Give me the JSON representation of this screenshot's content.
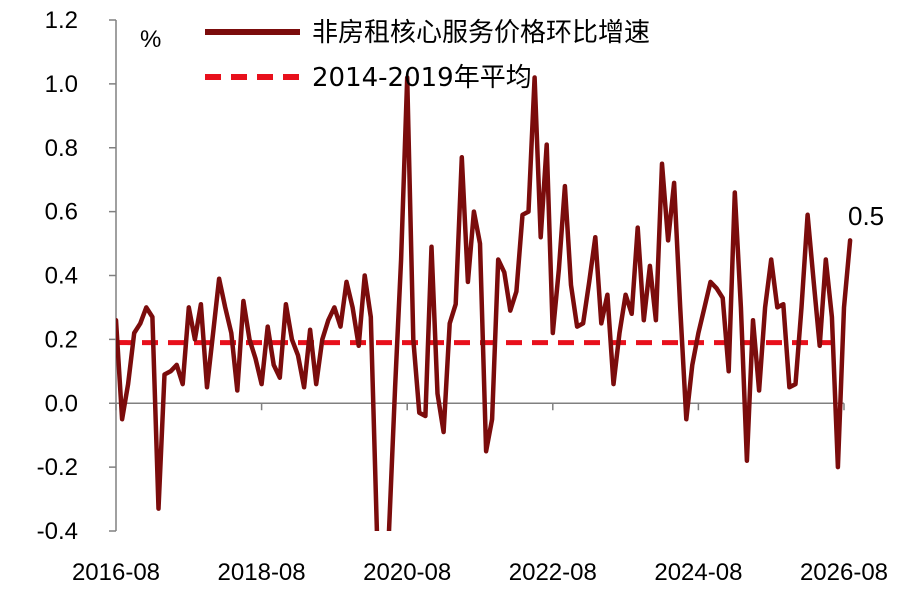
{
  "chart_data": {
    "type": "line",
    "title": "",
    "xlabel": "",
    "ylabel": "%",
    "ylim": [
      -0.4,
      1.2
    ],
    "y_ticks": [
      "1.2",
      "1.0",
      "0.8",
      "0.6",
      "0.4",
      "0.2",
      "0.0",
      "-0.2",
      "-0.4"
    ],
    "x_ticks": [
      "2016-08",
      "2018-08",
      "2020-08",
      "2022-08",
      "2024-08",
      "2026-08"
    ],
    "grid": false,
    "legend": "top-left",
    "end_label": "0.5",
    "series": [
      {
        "name": "非房租核心服务价格环比增速",
        "color": "#7b0c0c",
        "style": "solid",
        "start": "2016-08",
        "frequency": "monthly",
        "values": [
          0.26,
          -0.05,
          0.06,
          0.22,
          0.25,
          0.3,
          0.27,
          -0.33,
          0.09,
          0.1,
          0.12,
          0.06,
          0.3,
          0.2,
          0.31,
          0.05,
          0.22,
          0.39,
          0.3,
          0.22,
          0.04,
          0.32,
          0.2,
          0.14,
          0.06,
          0.24,
          0.12,
          0.08,
          0.31,
          0.2,
          0.15,
          0.05,
          0.23,
          0.06,
          0.2,
          0.26,
          0.3,
          0.24,
          0.38,
          0.3,
          0.18,
          0.4,
          0.27,
          -0.4,
          -0.5,
          -0.4,
          0.05,
          0.45,
          1.02,
          0.2,
          -0.03,
          -0.04,
          0.49,
          0.03,
          -0.09,
          0.25,
          0.31,
          0.77,
          0.38,
          0.6,
          0.5,
          -0.15,
          -0.05,
          0.45,
          0.41,
          0.29,
          0.35,
          0.59,
          0.6,
          1.02,
          0.52,
          0.81,
          0.22,
          0.42,
          0.68,
          0.37,
          0.24,
          0.25,
          0.38,
          0.52,
          0.25,
          0.34,
          0.06,
          0.22,
          0.34,
          0.28,
          0.55,
          0.26,
          0.43,
          0.26,
          0.75,
          0.51,
          0.69,
          0.3,
          -0.05,
          0.12,
          0.22,
          0.3,
          0.38,
          0.36,
          0.33,
          0.1,
          0.66,
          0.3,
          -0.18,
          0.26,
          0.04,
          0.3,
          0.45,
          0.3,
          0.31,
          0.05,
          0.06,
          0.3,
          0.59,
          0.38,
          0.18,
          0.45,
          0.27,
          -0.2,
          0.3,
          0.51
        ]
      },
      {
        "name": "2014-2019年平均",
        "color": "#e8101c",
        "style": "dashed",
        "value": 0.19,
        "from": "2016-08",
        "to": "2026-08"
      }
    ]
  }
}
